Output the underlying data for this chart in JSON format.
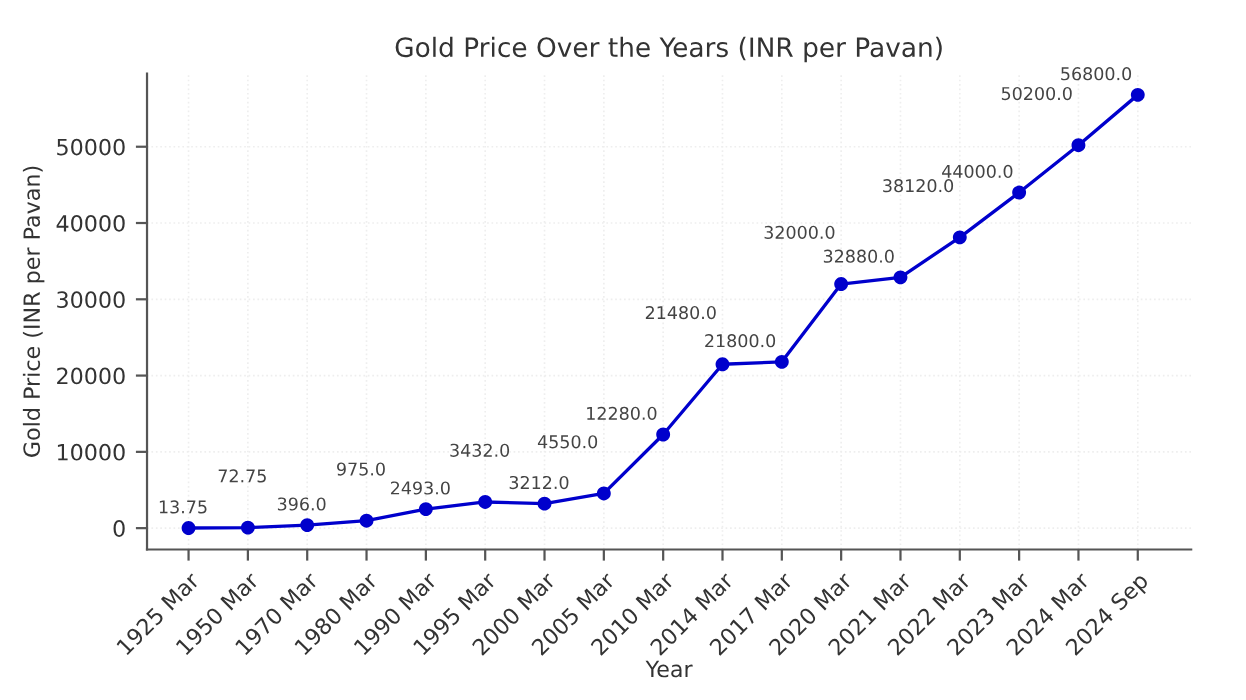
{
  "chart_data": {
    "type": "line",
    "title": "Gold Price Over the Years (INR per Pavan)",
    "xlabel": "Year",
    "ylabel": "Gold Price (INR per Pavan)",
    "categories": [
      "1925 Mar",
      "1950 Mar",
      "1970 Mar",
      "1980 Mar",
      "1990 Mar",
      "1995 Mar",
      "2000 Mar",
      "2005 Mar",
      "2010 Mar",
      "2014 Mar",
      "2017 Mar",
      "2020 Mar",
      "2021 Mar",
      "2022 Mar",
      "2023 Mar",
      "2024 Mar",
      "2024 Sep"
    ],
    "series": [
      {
        "color": "#0000cc",
        "values": [
          13.75,
          72.75,
          396,
          975,
          2493,
          3432,
          3212,
          4550,
          12280,
          21480,
          21800,
          32000,
          32880,
          38120,
          44000,
          50200,
          56800
        ],
        "value_labels": [
          "13.75",
          "72.75",
          "396.0",
          "975.0",
          "2493.0",
          "3432.0",
          "3212.0",
          "4550.0",
          "12280.0",
          "21480.0",
          "21800.0",
          "32000.0",
          "32880.0",
          "38120.0",
          "44000.0",
          "50200.0",
          "56800.0"
        ]
      }
    ],
    "ylim": [
      -2800,
      59600
    ],
    "yticks": [
      0,
      10000,
      20000,
      30000,
      40000,
      50000
    ],
    "grid": true,
    "marker": "circle",
    "line_style": "solid"
  }
}
